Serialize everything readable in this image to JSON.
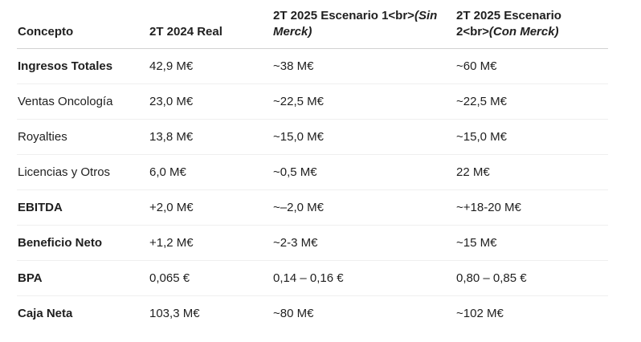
{
  "page": {
    "background_color": "#ffffff",
    "text_color": "#1f1f1f",
    "header_border_color": "#d2d2d2",
    "row_border_color": "#efefef"
  },
  "table": {
    "columns": [
      {
        "label": "Concepto",
        "italic_suffix": ""
      },
      {
        "label": "2T 2024 Real",
        "italic_suffix": ""
      },
      {
        "label": "2T 2025 Escenario 1<br>",
        "italic_suffix": "(Sin Merck)"
      },
      {
        "label": "2T 2025 Escenario 2<br>",
        "italic_suffix": "(Con Merck)"
      }
    ],
    "rows": [
      {
        "concepto": "Ingresos Totales",
        "real_2t2024": "42,9 M€",
        "escenario1": "~38 M€",
        "escenario2": "~60 M€"
      },
      {
        "concepto": "Ventas Oncología",
        "real_2t2024": "23,0 M€",
        "escenario1": "~22,5 M€",
        "escenario2": "~22,5 M€"
      },
      {
        "concepto": "Royalties",
        "real_2t2024": "13,8 M€",
        "escenario1": "~15,0 M€",
        "escenario2": "~15,0 M€"
      },
      {
        "concepto": "Licencias y Otros",
        "real_2t2024": "6,0 M€",
        "escenario1": "~0,5 M€",
        "escenario2": "22 M€"
      },
      {
        "concepto": "EBITDA",
        "real_2t2024": "+2,0 M€",
        "escenario1": "~–2,0 M€",
        "escenario2": "~+18-20 M€"
      },
      {
        "concepto": "Beneficio Neto",
        "real_2t2024": "+1,2 M€",
        "escenario1": "~2-3 M€",
        "escenario2": "~15 M€"
      },
      {
        "concepto": "BPA",
        "real_2t2024": "0,065 €",
        "escenario1": "0,14 – 0,16 €",
        "escenario2": "0,80 – 0,85 €"
      },
      {
        "concepto": "Caja Neta",
        "real_2t2024": "103,3 M€",
        "escenario1": "~80 M€",
        "escenario2": "~102 M€"
      }
    ]
  }
}
